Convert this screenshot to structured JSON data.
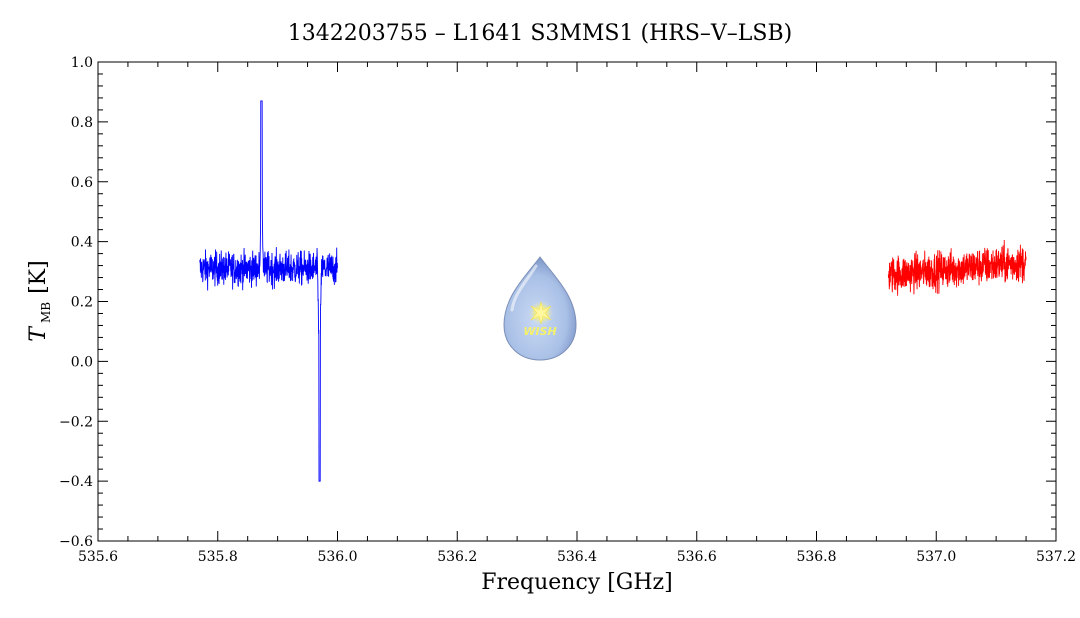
{
  "chart_data": {
    "type": "line",
    "title": "1342203755 – L1641 S3MMS1 (HRS–V–LSB)",
    "xlabel": "Frequency [GHz]",
    "ylabel_main": "T",
    "ylabel_sub": "MB",
    "ylabel_unit": "[K]",
    "xlim": [
      535.6,
      537.2
    ],
    "ylim": [
      -0.6,
      1.0
    ],
    "x_ticks": [
      "535.6",
      "535.8",
      "536.0",
      "536.2",
      "536.4",
      "536.6",
      "536.8",
      "537.0",
      "537.2"
    ],
    "y_ticks": [
      "−0.6",
      "−0.4",
      "−0.2",
      "0.0",
      "0.2",
      "0.4",
      "0.6",
      "0.8",
      "1.0"
    ],
    "logo_text": "WISH",
    "series": [
      {
        "color": "#0000ff",
        "x_range": [
          535.77,
          536.0
        ],
        "baseline": 0.31,
        "noise": 0.04,
        "features": [
          {
            "x": 535.873,
            "peak": 0.87
          },
          {
            "x": 535.97,
            "peak": -0.4
          }
        ]
      },
      {
        "color": "#ff0000",
        "x_range": [
          536.92,
          537.15
        ],
        "baseline": 0.31,
        "noise": 0.045,
        "slope": 0.18,
        "features": []
      }
    ]
  }
}
